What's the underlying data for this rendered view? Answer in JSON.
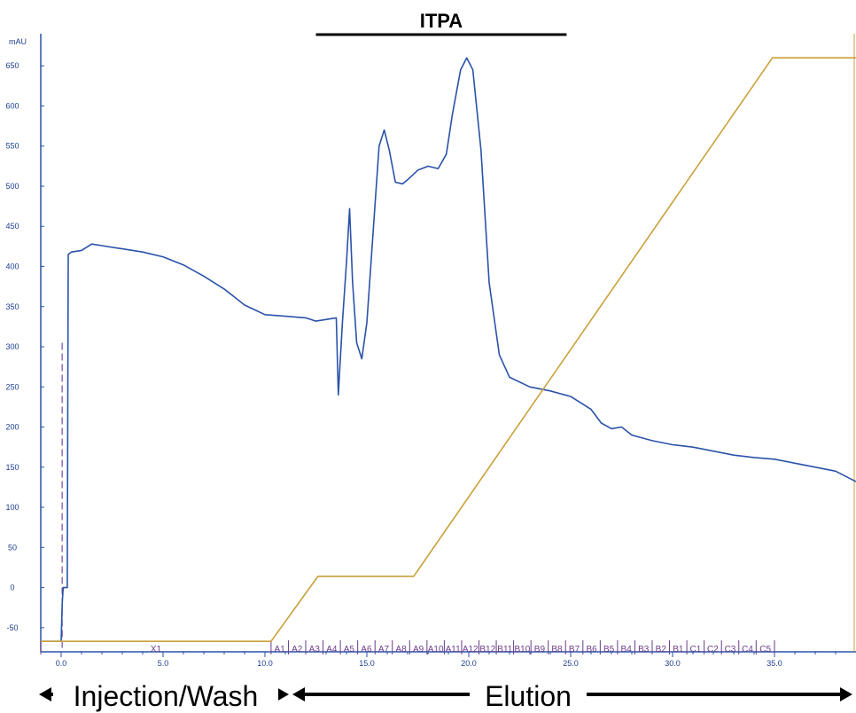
{
  "chart_data": {
    "type": "line",
    "title": "ITPA",
    "ylabel": "mAU",
    "ylim": [
      -80,
      690
    ],
    "xlim": [
      -1.0,
      39.0
    ],
    "y_ticks": [
      "-50",
      "0",
      "50",
      "100",
      "150",
      "200",
      "250",
      "300",
      "350",
      "400",
      "450",
      "500",
      "550",
      "600",
      "650"
    ],
    "x_ticks": [
      "0.0",
      "5.0",
      "10.0",
      "15.0",
      "20.0",
      "25.0",
      "30.0",
      "35.0"
    ],
    "series": [
      {
        "name": "",
        "color": "#2a52a8",
        "x": [
          -1.0,
          0.0,
          0.05,
          0.1,
          0.15,
          0.2,
          0.3,
          0.35,
          0.5,
          1.0,
          1.5,
          2.0,
          3.0,
          4.0,
          5.0,
          6.0,
          7.0,
          8.0,
          8.5,
          9.0,
          9.5,
          10.0,
          11.0,
          12.0,
          12.5,
          13.5,
          13.6,
          13.8,
          14.0,
          14.15,
          14.3,
          14.5,
          14.75,
          15.0,
          15.3,
          15.6,
          15.85,
          16.1,
          16.4,
          16.75,
          17.0,
          17.5,
          18.0,
          18.5,
          18.9,
          19.2,
          19.6,
          19.9,
          20.2,
          20.6,
          21.0,
          21.5,
          22.0,
          23.0,
          24.0,
          25.0,
          26.0,
          26.5,
          27.0,
          27.5,
          28.0,
          29.0,
          30.0,
          31.0,
          32.0,
          33.0,
          34.0,
          35.0,
          36.0,
          37.0,
          38.0,
          39.0
        ],
        "y": [
          -67,
          -67,
          -20,
          0,
          0,
          0,
          0,
          415,
          418,
          420,
          428,
          426,
          422,
          418,
          412,
          402,
          388,
          372,
          362,
          352,
          346,
          340,
          338,
          336,
          332,
          336,
          240,
          330,
          405,
          472,
          380,
          305,
          285,
          330,
          440,
          550,
          570,
          545,
          505,
          503,
          508,
          520,
          525,
          522,
          540,
          590,
          645,
          660,
          645,
          545,
          380,
          290,
          262,
          250,
          245,
          238,
          222,
          205,
          198,
          200,
          190,
          183,
          178,
          175,
          170,
          165,
          162,
          160,
          155,
          150,
          145,
          132
        ]
      },
      {
        "name": "",
        "color": "#c9a13a",
        "x": [
          -1.0,
          10.3,
          12.6,
          17.3,
          34.9,
          39.0
        ],
        "y": [
          -67,
          -67,
          14,
          14,
          660,
          660
        ]
      }
    ],
    "fractions": [
      "X1",
      "A1",
      "A2",
      "A3",
      "A4",
      "A5",
      "A6",
      "A7",
      "A8",
      "A9",
      "A10",
      "A11",
      "A12",
      "B12",
      "B11",
      "B10",
      "B9",
      "B8",
      "B7",
      "B6",
      "B5",
      "B4",
      "B3",
      "B2",
      "B1",
      "C1",
      "C2",
      "C3",
      "C4",
      "C5"
    ],
    "fraction_bounds": [
      -1.0,
      10.3,
      11.15,
      12.0,
      12.85,
      13.7,
      14.55,
      15.4,
      16.25,
      17.1,
      17.95,
      18.8,
      19.65,
      20.5,
      21.35,
      22.2,
      23.05,
      23.9,
      24.75,
      25.6,
      26.45,
      27.3,
      28.15,
      29.0,
      29.85,
      30.7,
      31.55,
      32.4,
      33.25,
      34.1,
      35.0
    ],
    "annotations": {
      "title_bar_range": [
        12.5,
        24.8
      ],
      "injection_label": "Injection/Wash",
      "elution_label": "Elution",
      "injection_range": [
        -1.0,
        11.8
      ],
      "elution_range": [
        11.8,
        39.0
      ]
    }
  }
}
